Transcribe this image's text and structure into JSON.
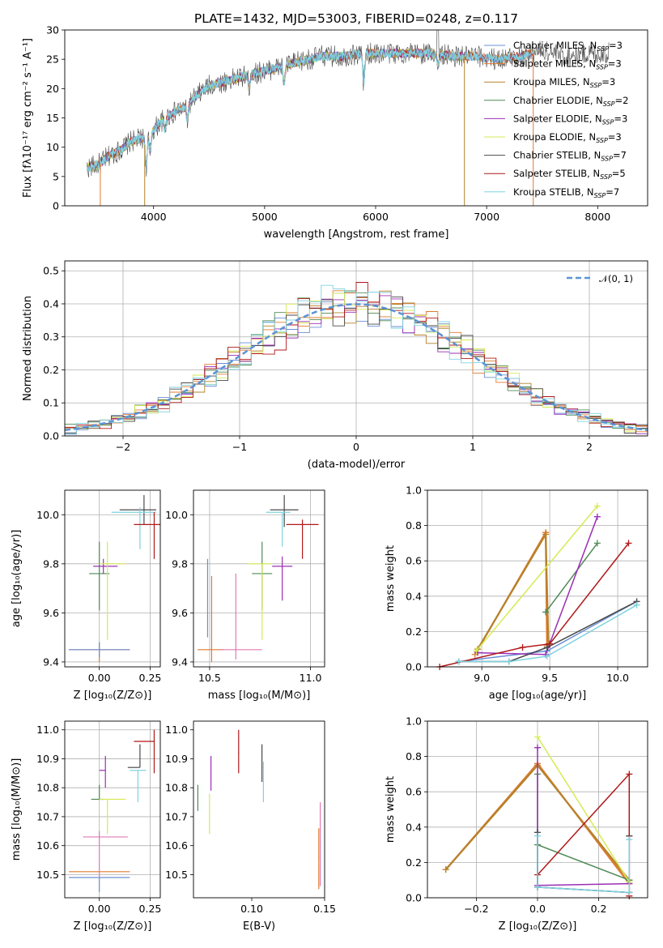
{
  "figure": {
    "title": "PLATE=1432, MJD=53003, FIBERID=0248, z=0.117"
  },
  "colors": {
    "Chabrier MILES": "#6a8fd6",
    "Salpeter MILES": "#e07a2e",
    "Kroupa MILES": "#b5822b",
    "Chabrier ELODIE": "#4f8a55",
    "Salpeter ELODIE": "#9b2fb5",
    "Kroupa ELODIE": "#d6ea55",
    "Chabrier STELIB": "#4a4a4a",
    "Salpeter STELIB": "#b01818",
    "Kroupa STELIB": "#7fd3e0",
    "extra": "#e07ab5",
    "gauss": "#5b93d6",
    "grid": "#b0b0b0"
  },
  "chart_data": [
    {
      "id": "spectrum",
      "type": "line",
      "title": "PLATE=1432, MJD=53003, FIBERID=0248, z=0.117",
      "xlabel": "wavelength [Angstrom, rest frame]",
      "ylabel": "Flux [fλ10⁻¹⁷ erg cm⁻² s⁻¹ A⁻¹]",
      "xlim": [
        3200,
        8450
      ],
      "ylim": [
        0,
        30
      ],
      "xticks": [
        4000,
        5000,
        6000,
        7000,
        8000
      ],
      "yticks": [
        0,
        5,
        10,
        15,
        20,
        25,
        30
      ],
      "grid": false,
      "legend_position": "right",
      "legend": [
        {
          "label": "Chabrier MILES, N",
          "sub": "SSP",
          "tail": "=3"
        },
        {
          "label": "Salpeter MILES, N",
          "sub": "SSP",
          "tail": "=3"
        },
        {
          "label": "Kroupa MILES, N",
          "sub": "SSP",
          "tail": "=3"
        },
        {
          "label": "Chabrier ELODIE, N",
          "sub": "SSP",
          "tail": "=2"
        },
        {
          "label": "Salpeter ELODIE, N",
          "sub": "SSP",
          "tail": "=3"
        },
        {
          "label": "Kroupa ELODIE, N",
          "sub": "SSP",
          "tail": "=3"
        },
        {
          "label": "Chabrier STELIB, N",
          "sub": "SSP",
          "tail": "=7"
        },
        {
          "label": "Salpeter STELIB, N",
          "sub": "SSP",
          "tail": "=5"
        },
        {
          "label": "Kroupa STELIB, N",
          "sub": "SSP",
          "tail": "=7"
        }
      ],
      "continuum": {
        "x": [
          3400,
          3500,
          3600,
          3700,
          3800,
          3900,
          4000,
          4100,
          4200,
          4300,
          4400,
          4500,
          4700,
          4900,
          5100,
          5300,
          5500,
          5700,
          5900,
          6100,
          6300,
          6500,
          6700,
          6900,
          7100,
          7300,
          7500,
          7700,
          7900,
          8100
        ],
        "y": [
          6.5,
          7.0,
          8.5,
          9.5,
          11.0,
          11.5,
          13.0,
          15.0,
          16.0,
          17.0,
          19.0,
          20.5,
          21.5,
          22.5,
          23.5,
          24.5,
          25.5,
          25.5,
          26.0,
          26.0,
          26.0,
          26.0,
          25.5,
          25.5,
          25.0,
          25.5,
          26.5,
          25.5,
          26.0,
          26.0
        ]
      },
      "absorption": [
        {
          "x": 3934,
          "depth": 5.5
        },
        {
          "x": 3969,
          "depth": 3.5
        },
        {
          "x": 4102,
          "depth": 2.0
        },
        {
          "x": 4304,
          "depth": 2.5
        },
        {
          "x": 4861,
          "depth": 2.0
        },
        {
          "x": 5175,
          "depth": 3.0
        },
        {
          "x": 5893,
          "depth": 5.0
        },
        {
          "x": 6563,
          "depth": 2.0
        }
      ],
      "spikes": [
        {
          "x": 3520,
          "series": "Salpeter MILES"
        },
        {
          "x": 3920,
          "series": "Kroupa MILES"
        },
        {
          "x": 6800,
          "series": "Kroupa MILES"
        },
        {
          "x": 7420,
          "series": "Salpeter MILES"
        }
      ],
      "peak_x": 6560
    },
    {
      "id": "residual_hist",
      "type": "histogram",
      "xlabel": "(data-model)/error",
      "ylabel": "Normed distribution",
      "xlim": [
        -2.5,
        2.5
      ],
      "ylim": [
        0,
        0.53
      ],
      "xticks": [
        -2,
        -1,
        0,
        1,
        2
      ],
      "yticks": [
        0.0,
        0.1,
        0.2,
        0.3,
        0.4,
        0.5
      ],
      "grid": true,
      "bin_width": 0.1,
      "legend_position": "top-right",
      "legend": [
        {
          "label": "𝒩(0, 1)",
          "style": "dashed"
        }
      ],
      "gaussian": {
        "mu": 0,
        "sigma": 1
      },
      "series_note": "nine step histograms following the unit gaussian"
    },
    {
      "id": "age_vs_Z",
      "type": "errorbar",
      "xlabel": "Z [log₁₀(Z/Z⊙)]",
      "ylabel": "age  [log₁₀(age/yr)]",
      "xlim": [
        -0.17,
        0.3
      ],
      "ylim": [
        9.38,
        10.1
      ],
      "xticks": [
        0.0,
        0.25
      ],
      "xtick_labels": [
        "0.00",
        "0.25"
      ],
      "yticks": [
        9.4,
        9.6,
        9.8,
        10.0
      ],
      "grid": true,
      "points": [
        {
          "series": "Salpeter MILES",
          "x": 0.0,
          "xerr": [
            0.15,
            0.15
          ],
          "y": 9.45,
          "yerr": [
            0.05,
            0.03
          ]
        },
        {
          "series": "Chabrier MILES",
          "x": 0.0,
          "xerr": [
            0.15,
            0.15
          ],
          "y": 9.45,
          "yerr": [
            0.03,
            0.03
          ]
        },
        {
          "series": "Chabrier ELODIE",
          "x": 0.0,
          "xerr": [
            0.05,
            0.05
          ],
          "y": 9.76,
          "yerr": [
            0.15,
            0.13
          ]
        },
        {
          "series": "Salpeter ELODIE",
          "x": 0.02,
          "xerr": [
            0.05,
            0.07
          ],
          "y": 9.79,
          "yerr": [
            0.03,
            0.03
          ]
        },
        {
          "series": "Kroupa ELODIE",
          "x": 0.04,
          "xerr": [
            0.04,
            0.09
          ],
          "y": 9.8,
          "yerr": [
            0.31,
            0.09
          ]
        },
        {
          "series": "Chabrier STELIB",
          "x": 0.22,
          "xerr": [
            0.12,
            0.06
          ],
          "y": 10.02,
          "yerr": [
            0.06,
            0.06
          ]
        },
        {
          "series": "Kroupa STELIB",
          "x": 0.2,
          "xerr": [
            0.14,
            0.08
          ],
          "y": 10.01,
          "yerr": [
            0.15,
            0.02
          ]
        },
        {
          "series": "Salpeter STELIB",
          "x": 0.27,
          "xerr": [
            0.1,
            0.03
          ],
          "y": 9.96,
          "yerr": [
            0.14,
            0.05
          ]
        }
      ]
    },
    {
      "id": "age_vs_mass",
      "type": "errorbar",
      "xlabel": "mass [log₁₀(M/M⊙)]",
      "ylabel": "",
      "xlim": [
        10.42,
        11.07
      ],
      "ylim": [
        9.38,
        10.1
      ],
      "xticks": [
        10.5,
        11.0
      ],
      "xtick_labels": [
        "10.5",
        "11.0"
      ],
      "yticks": [
        9.4,
        9.6,
        9.8,
        10.0
      ],
      "grid": true,
      "points": [
        {
          "series": "Salpeter MILES",
          "x": 10.51,
          "xerr": [
            0.07,
            0.06
          ],
          "y": 9.45,
          "yerr": [
            0.05,
            0.3
          ]
        },
        {
          "series": "Chabrier MILES",
          "x": 10.49,
          "xerr": [
            0.0,
            0.0
          ],
          "y": 9.5,
          "yerr": [
            0.0,
            0.32
          ]
        },
        {
          "series": "extra",
          "x": 10.63,
          "xerr": [
            0.08,
            0.13
          ],
          "y": 9.45,
          "yerr": [
            0.04,
            0.31
          ]
        },
        {
          "series": "Chabrier ELODIE",
          "x": 10.76,
          "xerr": [
            0.05,
            0.05
          ],
          "y": 9.76,
          "yerr": [
            0.15,
            0.13
          ]
        },
        {
          "series": "Kroupa ELODIE",
          "x": 10.76,
          "xerr": [
            0.07,
            0.05
          ],
          "y": 9.8,
          "yerr": [
            0.31,
            0.0
          ]
        },
        {
          "series": "Salpeter ELODIE",
          "x": 10.86,
          "xerr": [
            0.05,
            0.05
          ],
          "y": 9.79,
          "yerr": [
            0.14,
            0.04
          ]
        },
        {
          "series": "Chabrier STELIB",
          "x": 10.87,
          "xerr": [
            0.07,
            0.07
          ],
          "y": 10.02,
          "yerr": [
            0.07,
            0.06
          ]
        },
        {
          "series": "Kroupa STELIB",
          "x": 10.86,
          "xerr": [
            0.08,
            0.04
          ],
          "y": 10.01,
          "yerr": [
            0.14,
            0.0
          ]
        },
        {
          "series": "Salpeter STELIB",
          "x": 10.96,
          "xerr": [
            0.08,
            0.08
          ],
          "y": 9.96,
          "yerr": [
            0.14,
            0.02
          ]
        }
      ]
    },
    {
      "id": "weight_vs_age",
      "type": "line",
      "xlabel": "age  [log₁₀(age/yr)]",
      "ylabel": "mass weight",
      "xlim": [
        8.6,
        10.22
      ],
      "ylim": [
        0,
        1
      ],
      "xticks": [
        9.0,
        9.5,
        10.0
      ],
      "xtick_labels": [
        "9.0",
        "9.5",
        "10.0"
      ],
      "yticks": [
        0.0,
        0.2,
        0.4,
        0.6,
        0.8,
        1.0
      ],
      "grid": true,
      "series": [
        {
          "name": "Chabrier MILES",
          "x": [
            8.83,
            9.48,
            9.48,
            10.14
          ],
          "y": [
            0.03,
            0.09,
            0.09,
            0.37
          ]
        },
        {
          "name": "Salpeter MILES",
          "x": [
            8.95,
            9.47,
            9.47,
            9.48
          ],
          "y": [
            0.07,
            0.76,
            0.76,
            0.12
          ]
        },
        {
          "name": "Kroupa MILES",
          "x": [
            8.97,
            9.47,
            9.49
          ],
          "y": [
            0.1,
            0.75,
            0.13
          ]
        },
        {
          "name": "Chabrier ELODIE",
          "x": [
            9.47,
            9.85
          ],
          "y": [
            0.31,
            0.7
          ]
        },
        {
          "name": "Salpeter ELODIE",
          "x": [
            8.97,
            9.47,
            9.85
          ],
          "y": [
            0.08,
            0.07,
            0.85
          ]
        },
        {
          "name": "Kroupa ELODIE",
          "x": [
            8.96,
            9.85
          ],
          "y": [
            0.09,
            0.91
          ]
        },
        {
          "name": "Chabrier STELIB",
          "x": [
            8.83,
            9.2,
            9.48,
            10.14
          ],
          "y": [
            0.03,
            0.03,
            0.11,
            0.37
          ]
        },
        {
          "name": "Salpeter STELIB",
          "x": [
            8.69,
            9.3,
            9.5,
            10.08
          ],
          "y": [
            0.0,
            0.11,
            0.13,
            0.7
          ]
        },
        {
          "name": "Kroupa STELIB",
          "x": [
            8.83,
            9.2,
            9.48,
            10.14
          ],
          "y": [
            0.03,
            0.03,
            0.06,
            0.35
          ]
        }
      ]
    },
    {
      "id": "mass_vs_Z",
      "type": "errorbar",
      "xlabel": "Z [log₁₀(Z/Z⊙)]",
      "ylabel": "mass [log₁₀(M/M⊙)]",
      "xlim": [
        -0.17,
        0.3
      ],
      "ylim": [
        10.42,
        11.03
      ],
      "xticks": [
        0.0,
        0.25
      ],
      "xtick_labels": [
        "0.00",
        "0.25"
      ],
      "yticks": [
        10.5,
        10.6,
        10.7,
        10.8,
        10.9,
        11.0
      ],
      "grid": true,
      "points": [
        {
          "series": "Chabrier MILES",
          "x": 0.0,
          "xerr": [
            0.15,
            0.15
          ],
          "y": 10.49,
          "yerr": [
            0.05,
            0.0
          ]
        },
        {
          "series": "Salpeter MILES",
          "x": 0.0,
          "xerr": [
            0.15,
            0.15
          ],
          "y": 10.51,
          "yerr": [
            0.0,
            0.0
          ]
        },
        {
          "series": "extra",
          "x": 0.0,
          "xerr": [
            0.08,
            0.14
          ],
          "y": 10.63,
          "yerr": [
            0.14,
            0.02
          ]
        },
        {
          "series": "Chabrier ELODIE",
          "x": 0.0,
          "xerr": [
            0.04,
            0.02
          ],
          "y": 10.76,
          "yerr": [
            0.0,
            0.05
          ]
        },
        {
          "series": "Kroupa ELODIE",
          "x": 0.04,
          "xerr": [
            0.04,
            0.09
          ],
          "y": 10.76,
          "yerr": [
            0.12,
            0.0
          ]
        },
        {
          "series": "Salpeter ELODIE",
          "x": 0.03,
          "xerr": [
            0.03,
            0.0
          ],
          "y": 10.86,
          "yerr": [
            0.06,
            0.05
          ]
        },
        {
          "series": "Chabrier STELIB",
          "x": 0.2,
          "xerr": [
            0.06,
            0.0
          ],
          "y": 10.87,
          "yerr": [
            0.0,
            0.08
          ]
        },
        {
          "series": "Kroupa STELIB",
          "x": 0.19,
          "xerr": [
            0.04,
            0.04
          ],
          "y": 10.86,
          "yerr": [
            0.11,
            0.0
          ]
        },
        {
          "series": "Salpeter STELIB",
          "x": 0.27,
          "xerr": [
            0.1,
            0.0
          ],
          "y": 10.96,
          "yerr": [
            0.11,
            0.04
          ]
        }
      ]
    },
    {
      "id": "mass_vs_ebv",
      "type": "errorbar",
      "xlabel": "E(B-V)",
      "ylabel": "",
      "xlim": [
        0.06,
        0.15
      ],
      "ylim": [
        10.42,
        11.03
      ],
      "xticks": [
        0.05,
        0.1,
        0.15
      ],
      "xtick_labels": [
        "0.05",
        "0.10",
        "0.15"
      ],
      "yticks": [
        10.5,
        10.6,
        10.7,
        10.8,
        10.9,
        11.0
      ],
      "grid": false,
      "points": [
        {
          "series": "Chabrier ELODIE",
          "x": 0.063,
          "y": 10.76,
          "yerr": [
            0.04,
            0.05
          ]
        },
        {
          "series": "Kroupa ELODIE",
          "x": 0.071,
          "y": 10.73,
          "yerr": [
            0.09,
            0.05
          ]
        },
        {
          "series": "Salpeter ELODIE",
          "x": 0.072,
          "y": 10.86,
          "yerr": [
            0.07,
            0.05
          ]
        },
        {
          "series": "Salpeter STELIB",
          "x": 0.091,
          "y": 10.92,
          "yerr": [
            0.07,
            0.08
          ]
        },
        {
          "series": "Chabrier STELIB",
          "x": 0.107,
          "y": 10.87,
          "yerr": [
            0.05,
            0.08
          ]
        },
        {
          "series": "Kroupa STELIB",
          "x": 0.108,
          "y": 10.83,
          "yerr": [
            0.08,
            0.06
          ]
        },
        {
          "series": "Salpeter MILES",
          "x": 0.146,
          "y": 10.56,
          "yerr": [
            0.11,
            0.1
          ]
        },
        {
          "series": "extra",
          "x": 0.147,
          "y": 10.6,
          "yerr": [
            0.14,
            0.15
          ]
        }
      ]
    },
    {
      "id": "weight_vs_Z",
      "type": "line",
      "xlabel": "Z [log₁₀(Z/Z⊙)]",
      "ylabel": "mass weight",
      "xlim": [
        -0.36,
        0.36
      ],
      "ylim": [
        0,
        1
      ],
      "xticks": [
        -0.2,
        0.0,
        0.2
      ],
      "xtick_labels": [
        "−0.2",
        "0.0",
        "0.2"
      ],
      "yticks": [
        0.0,
        0.2,
        0.4,
        0.6,
        0.8,
        1.0
      ],
      "grid": true,
      "series": [
        {
          "name": "Chabrier MILES",
          "x": [
            0.0,
            0.0,
            0.3,
            0.3
          ],
          "y": [
            0.37,
            0.06,
            0.03,
            0.35
          ]
        },
        {
          "name": "Salpeter MILES",
          "x": [
            -0.3,
            0.0,
            0.3
          ],
          "y": [
            0.16,
            0.76,
            0.08
          ]
        },
        {
          "name": "Kroupa MILES",
          "x": [
            -0.3,
            0.0,
            0.3
          ],
          "y": [
            0.16,
            0.75,
            0.1
          ]
        },
        {
          "name": "Chabrier ELODIE",
          "x": [
            0.0,
            0.0,
            0.3
          ],
          "y": [
            0.7,
            0.3,
            0.1
          ]
        },
        {
          "name": "Salpeter ELODIE",
          "x": [
            0.0,
            0.0,
            0.3
          ],
          "y": [
            0.85,
            0.07,
            0.08
          ]
        },
        {
          "name": "Kroupa ELODIE",
          "x": [
            0.0,
            0.3
          ],
          "y": [
            0.91,
            0.09
          ]
        },
        {
          "name": "Chabrier STELIB",
          "x": [
            0.0,
            0.0,
            0.3,
            0.3
          ],
          "y": [
            0.37,
            0.06,
            0.03,
            0.35
          ]
        },
        {
          "name": "Salpeter STELIB",
          "x": [
            0.0,
            0.3,
            0.3
          ],
          "y": [
            0.13,
            0.7,
            0.01
          ]
        },
        {
          "name": "Kroupa STELIB",
          "x": [
            0.0,
            0.0,
            0.3,
            0.3
          ],
          "y": [
            0.35,
            0.06,
            0.03,
            0.33
          ]
        }
      ]
    }
  ]
}
